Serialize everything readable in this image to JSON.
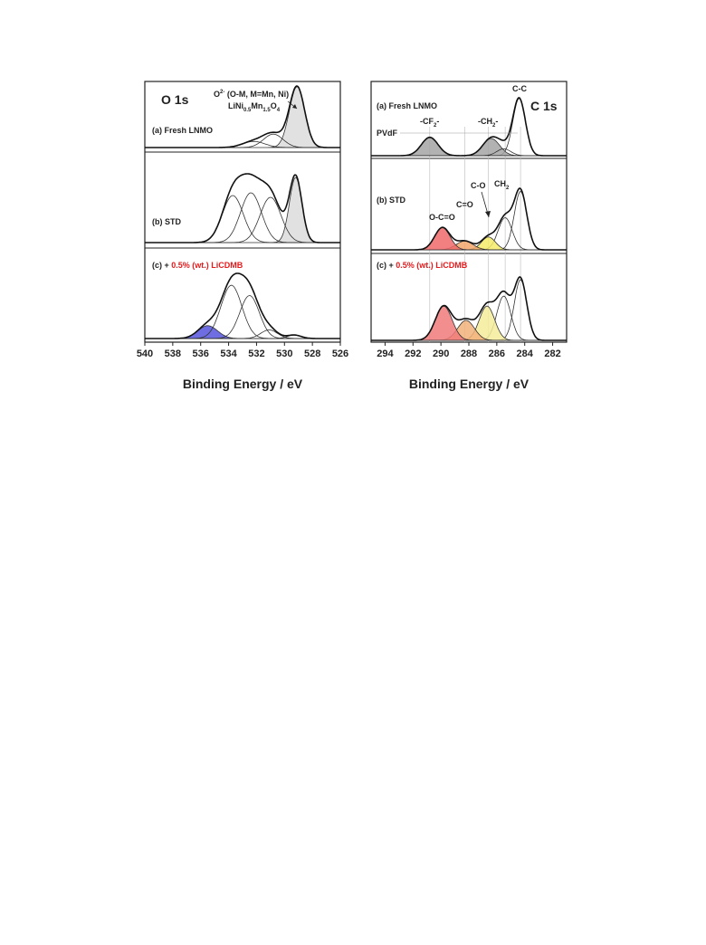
{
  "chart_data": [
    {
      "type": "line",
      "panel_title": "O 1s",
      "xlabel": "Binding Energy / eV",
      "xlim": [
        540,
        526
      ],
      "x_ticks": [
        "540",
        "538",
        "536",
        "534",
        "532",
        "530",
        "528",
        "526"
      ],
      "annotations": {
        "o2_label": "O",
        "o2_sup": "2-",
        "o2_rest": " (O-M, M=Mn, Ni)",
        "lnmo_a": "LiNi",
        "lnmo_s1": "0.5",
        "lnmo_b": "Mn",
        "lnmo_s2": "1.5",
        "lnmo_c": "O",
        "lnmo_s3": "4"
      },
      "rows": [
        {
          "label": "(a) Fresh LNMO",
          "components": [
            {
              "center": 529.1,
              "amplitude": 1.0,
              "sigma": 0.55,
              "fill": "#dcdcdc"
            },
            {
              "center": 530.8,
              "amplitude": 0.22,
              "sigma": 0.7,
              "fill": "none"
            },
            {
              "center": 532.2,
              "amplitude": 0.1,
              "sigma": 0.8,
              "fill": "none"
            }
          ]
        },
        {
          "label": "(b) STD",
          "components": [
            {
              "center": 529.2,
              "amplitude": 0.72,
              "sigma": 0.45,
              "fill": "#dcdcdc"
            },
            {
              "center": 531.0,
              "amplitude": 0.5,
              "sigma": 0.75,
              "fill": "none"
            },
            {
              "center": 532.4,
              "amplitude": 0.55,
              "sigma": 0.75,
              "fill": "none"
            },
            {
              "center": 533.7,
              "amplitude": 0.52,
              "sigma": 0.75,
              "fill": "none"
            }
          ]
        },
        {
          "label_prefix": "(c) + ",
          "label_highlight": "0.5% (wt.) LiCDMB",
          "components": [
            {
              "center": 535.5,
              "amplitude": 0.15,
              "sigma": 0.7,
              "fill": "#5555dd"
            },
            {
              "center": 533.8,
              "amplitude": 0.62,
              "sigma": 0.75,
              "fill": "none"
            },
            {
              "center": 532.5,
              "amplitude": 0.5,
              "sigma": 0.7,
              "fill": "none"
            },
            {
              "center": 531.1,
              "amplitude": 0.1,
              "sigma": 0.6,
              "fill": "none"
            },
            {
              "center": 529.3,
              "amplitude": 0.04,
              "sigma": 0.5,
              "fill": "none"
            }
          ]
        }
      ]
    },
    {
      "type": "line",
      "panel_title": "C 1s",
      "xlabel": "Binding Energy / eV",
      "xlim": [
        295,
        281
      ],
      "x_ticks": [
        "294",
        "292",
        "290",
        "288",
        "286",
        "284",
        "282"
      ],
      "annotations": {
        "cc": "C-C",
        "cf2": "-CF",
        "cf2_sub": "2",
        "ch2a": "-CH",
        "ch2a_sub": "2",
        "pvdf": "PVdF",
        "co": "C-O",
        "ch2b": "CH",
        "ch2b_sub": "2",
        "c_eq_o": "C=O",
        "ocoo": "O-C=O"
      },
      "rows": [
        {
          "label": "(a) Fresh LNMO",
          "components": [
            {
              "center": 284.4,
              "amplitude": 1.0,
              "sigma": 0.45,
              "fill": "none"
            },
            {
              "center": 286.4,
              "amplitude": 0.3,
              "sigma": 0.6,
              "fill": "#a5a5a5"
            },
            {
              "center": 290.8,
              "amplitude": 0.32,
              "sigma": 0.6,
              "fill": "#a5a5a5"
            },
            {
              "center": 285.5,
              "amplitude": 0.12,
              "sigma": 0.5,
              "fill": "none"
            }
          ]
        },
        {
          "label": "(b) STD",
          "components": [
            {
              "center": 284.3,
              "amplitude": 1.0,
              "sigma": 0.45,
              "fill": "none"
            },
            {
              "center": 285.4,
              "amplitude": 0.55,
              "sigma": 0.5,
              "fill": "none"
            },
            {
              "center": 286.6,
              "amplitude": 0.22,
              "sigma": 0.5,
              "fill": "#f4ec6a"
            },
            {
              "center": 288.3,
              "amplitude": 0.15,
              "sigma": 0.6,
              "fill": "#f2a66a"
            },
            {
              "center": 289.9,
              "amplitude": 0.38,
              "sigma": 0.55,
              "fill": "#f06a6a"
            }
          ]
        },
        {
          "label_prefix": "(c) + ",
          "label_highlight": "0.5% (wt.) LiCDMB",
          "components": [
            {
              "center": 284.3,
              "amplitude": 0.85,
              "sigma": 0.45,
              "fill": "none"
            },
            {
              "center": 285.5,
              "amplitude": 0.62,
              "sigma": 0.5,
              "fill": "none"
            },
            {
              "center": 286.7,
              "amplitude": 0.48,
              "sigma": 0.55,
              "fill": "#f4ec9a"
            },
            {
              "center": 288.2,
              "amplitude": 0.28,
              "sigma": 0.6,
              "fill": "#f2b27a"
            },
            {
              "center": 289.8,
              "amplitude": 0.48,
              "sigma": 0.6,
              "fill": "#f07a7a"
            }
          ]
        }
      ]
    }
  ]
}
